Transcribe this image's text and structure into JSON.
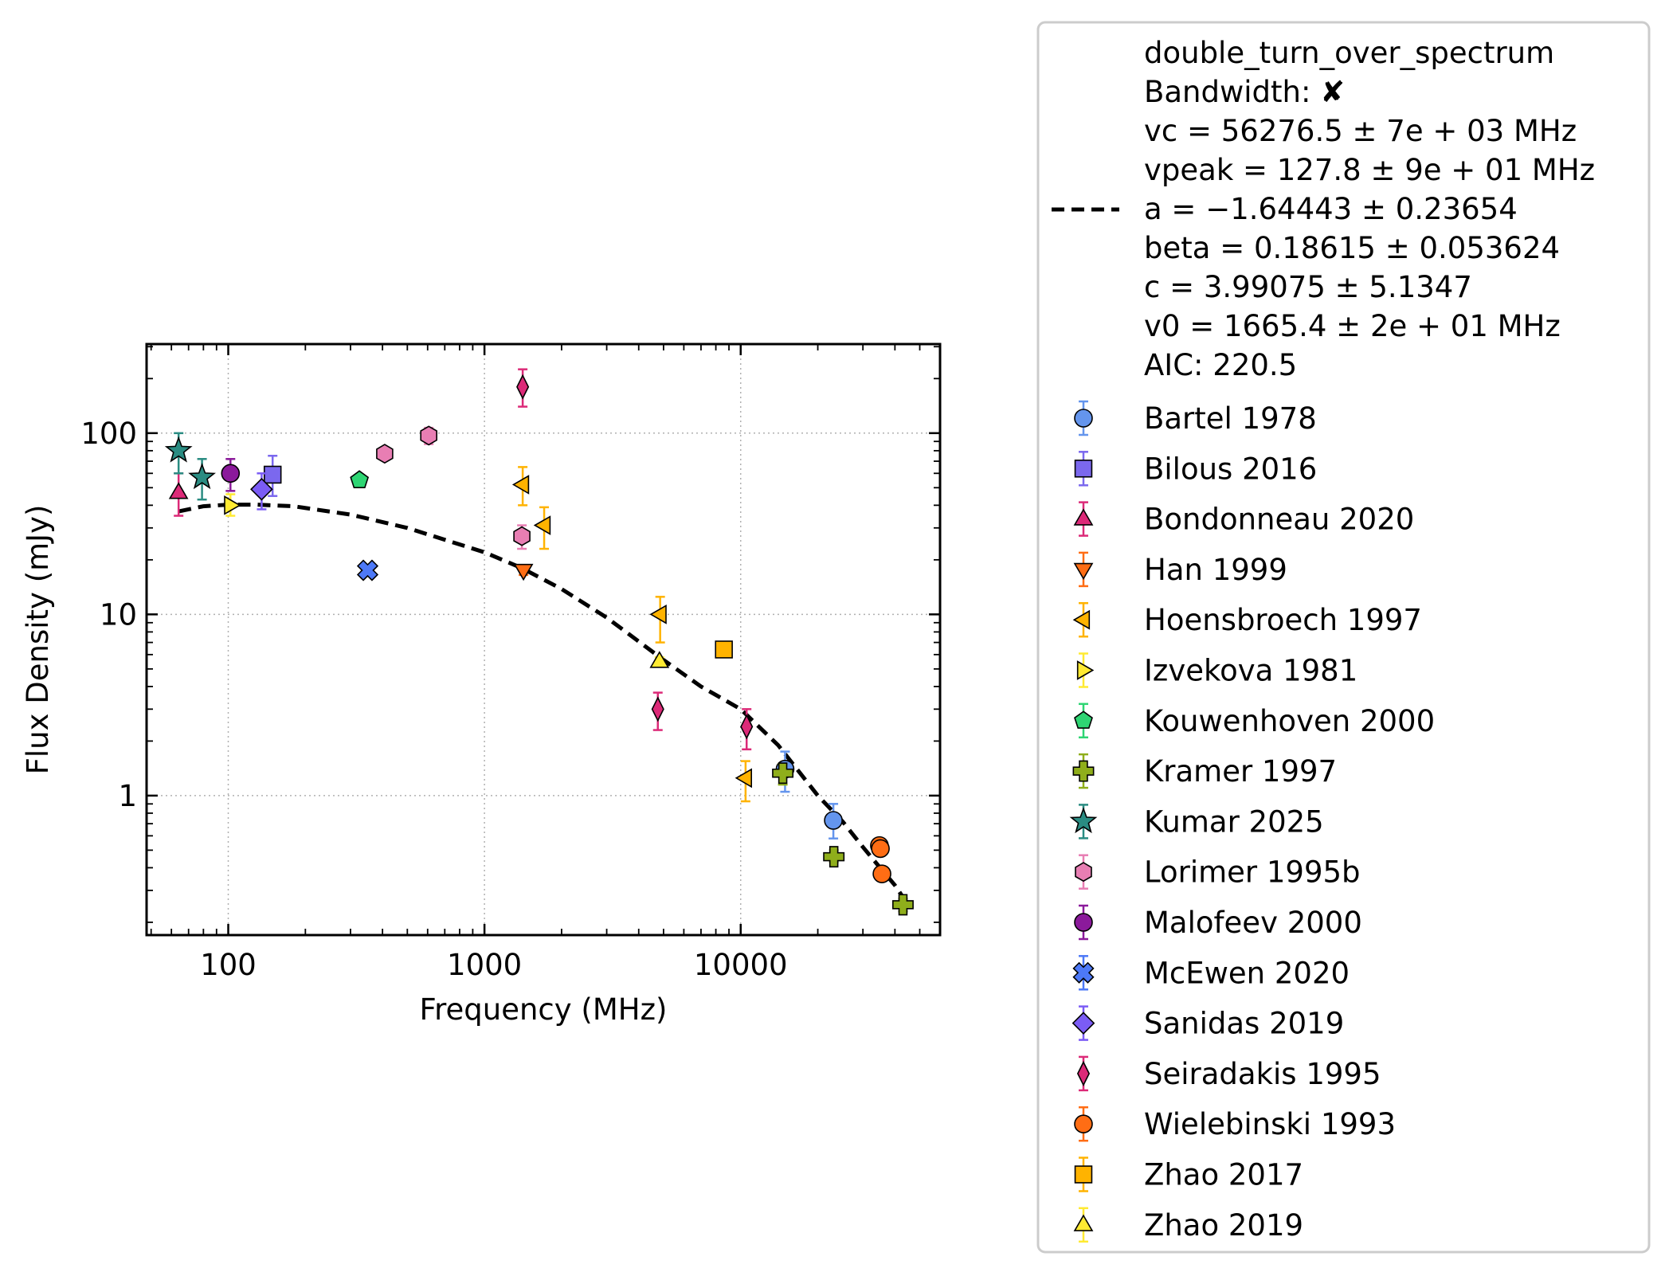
{
  "chart_data": {
    "type": "scatter",
    "xlabel": "Frequency (MHz)",
    "ylabel": "Flux Density (mJy)",
    "x_scale": "log",
    "y_scale": "log",
    "xlim": [
      48,
      60000
    ],
    "ylim": [
      0.17,
      310
    ],
    "grid": true,
    "x_ticks": [
      {
        "value": 100,
        "label": "100"
      },
      {
        "value": 1000,
        "label": "1000"
      },
      {
        "value": 10000,
        "label": "10000"
      }
    ],
    "y_ticks": [
      {
        "value": 1,
        "label": "1"
      },
      {
        "value": 10,
        "label": "10"
      },
      {
        "value": 100,
        "label": "100"
      }
    ],
    "legend_position": "outside right",
    "fit": {
      "name": "double_turn_over_spectrum",
      "style": "dashed",
      "color": "#000000",
      "legend_lines": [
        "double_turn_over_spectrum",
        "Bandwidth: ✘",
        "vc = 56276.5 ± 7e + 03 MHz",
        "vpeak = 127.8 ± 9e + 01 MHz",
        "a = −1.64443 ± 0.23654",
        "beta = 0.18615 ± 0.053624",
        "c = 3.99075 ± 5.1347",
        "v0 = 1665.4 ± 2e + 01 MHz",
        "AIC: 220.5"
      ],
      "x": [
        64,
        80,
        100,
        130,
        180,
        300,
        500,
        1000,
        1400,
        2000,
        3000,
        5000,
        7000,
        10000,
        14000,
        20000,
        25000,
        30000,
        35000,
        40000,
        45000
      ],
      "y": [
        37,
        39.5,
        40.3,
        40.3,
        39.5,
        35.5,
        30,
        22,
        18,
        13.8,
        9.6,
        5.6,
        4,
        3,
        1.9,
        1.0,
        0.72,
        0.52,
        0.4,
        0.32,
        0.25
      ]
    },
    "series": [
      {
        "name": "Bartel 1978",
        "marker": "circle",
        "color": "#6495ed",
        "points": [
          {
            "x": 14900,
            "y": 1.4,
            "err": [
              1.05,
              1.75
            ]
          },
          {
            "x": 23000,
            "y": 0.73,
            "err": [
              0.58,
              0.9
            ]
          }
        ]
      },
      {
        "name": "Bilous 2016",
        "marker": "square",
        "color": "#7b68ee",
        "points": [
          {
            "x": 149,
            "y": 59,
            "err": [
              45,
              75
            ]
          }
        ]
      },
      {
        "name": "Bondonneau 2020",
        "marker": "triangle-up",
        "color": "#dc2a78",
        "points": [
          {
            "x": 64,
            "y": 47,
            "err": [
              35,
              60
            ]
          }
        ]
      },
      {
        "name": "Han 1999",
        "marker": "triangle-down",
        "color": "#ff6d14",
        "points": [
          {
            "x": 1420,
            "y": 17.5,
            "err": [
              16.5,
              18.5
            ]
          }
        ]
      },
      {
        "name": "Hoensbroech 1997",
        "marker": "triangle-left",
        "color": "#ffb300",
        "points": [
          {
            "x": 1410,
            "y": 52,
            "err": [
              40,
              65
            ]
          },
          {
            "x": 1710,
            "y": 31,
            "err": [
              23,
              39
            ]
          },
          {
            "x": 4850,
            "y": 10,
            "err": [
              7,
              12.5
            ]
          },
          {
            "x": 10450,
            "y": 1.25,
            "err": [
              0.93,
              1.55
            ]
          }
        ]
      },
      {
        "name": "Izvekova 1981",
        "marker": "triangle-right",
        "color": "#ffea32",
        "points": [
          {
            "x": 102,
            "y": 40,
            "err": [
              35,
              46
            ]
          }
        ]
      },
      {
        "name": "Kouwenhoven 2000",
        "marker": "pentagon",
        "color": "#2ed573",
        "points": [
          {
            "x": 325,
            "y": 55,
            "err": [
              52,
              58
            ]
          }
        ]
      },
      {
        "name": "Kramer 1997",
        "marker": "plus",
        "color": "#8fae1b",
        "points": [
          {
            "x": 14600,
            "y": 1.33,
            "err": [
              1.15,
              1.5
            ]
          },
          {
            "x": 23100,
            "y": 0.46,
            "err": [
              0.43,
              0.5
            ]
          },
          {
            "x": 43000,
            "y": 0.25,
            "err": [
              0.23,
              0.27
            ]
          }
        ]
      },
      {
        "name": "Kumar 2025",
        "marker": "star",
        "color": "#2a8c82",
        "points": [
          {
            "x": 64,
            "y": 80,
            "err": [
              60,
              100
            ]
          },
          {
            "x": 79,
            "y": 57,
            "err": [
              43,
              72
            ]
          }
        ]
      },
      {
        "name": "Lorimer 1995b",
        "marker": "hexagon",
        "color": "#e87eb3",
        "points": [
          {
            "x": 408,
            "y": 77,
            "err": [
              73,
              81
            ]
          },
          {
            "x": 606,
            "y": 97,
            "err": [
              87,
              107
            ]
          },
          {
            "x": 1400,
            "y": 27,
            "err": [
              23,
              31
            ]
          }
        ]
      },
      {
        "name": "Malofeev 2000",
        "marker": "circle",
        "color": "#8b1a9b",
        "points": [
          {
            "x": 102,
            "y": 60,
            "err": [
              48,
              72
            ]
          }
        ]
      },
      {
        "name": "McEwen 2020",
        "marker": "x",
        "color": "#4d79f7",
        "points": [
          {
            "x": 350,
            "y": 17.5,
            "err": [
              16.7,
              18.3
            ]
          }
        ]
      },
      {
        "name": "Sanidas 2019",
        "marker": "diamond",
        "color": "#7b5cf5",
        "points": [
          {
            "x": 135,
            "y": 49,
            "err": [
              38,
              60
            ]
          }
        ]
      },
      {
        "name": "Seiradakis 1995",
        "marker": "thin-diamond",
        "color": "#dc2a78",
        "points": [
          {
            "x": 1410,
            "y": 180,
            "err": [
              140,
              225
            ]
          },
          {
            "x": 4750,
            "y": 3.0,
            "err": [
              2.3,
              3.7
            ]
          },
          {
            "x": 10550,
            "y": 2.4,
            "err": [
              1.8,
              3.0
            ]
          }
        ]
      },
      {
        "name": "Wielebinski 1993",
        "marker": "circle",
        "color": "#ff6d14",
        "points": [
          {
            "x": 34800,
            "y": 0.53,
            "err": [
              0.5,
              0.56
            ]
          },
          {
            "x": 35100,
            "y": 0.51,
            "err": [
              0.48,
              0.54
            ]
          },
          {
            "x": 35600,
            "y": 0.37,
            "err": [
              0.35,
              0.39
            ]
          }
        ]
      },
      {
        "name": "Zhao 2017",
        "marker": "square",
        "color": "#ffb300",
        "points": [
          {
            "x": 8600,
            "y": 6.4,
            "err": [
              6.1,
              6.7
            ]
          }
        ]
      },
      {
        "name": "Zhao 2019",
        "marker": "triangle-up",
        "color": "#ffea32",
        "points": [
          {
            "x": 4820,
            "y": 5.5,
            "err": [
              5.2,
              5.8
            ]
          }
        ]
      }
    ]
  }
}
